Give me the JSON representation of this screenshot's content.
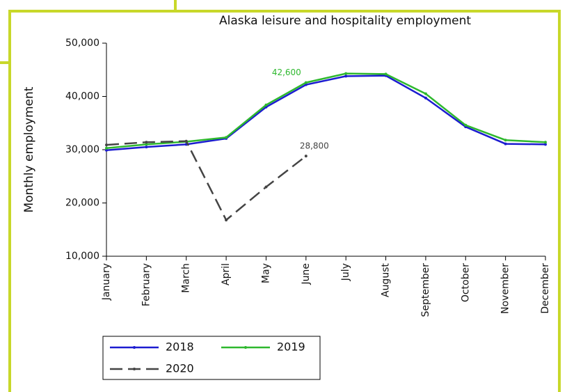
{
  "chart_data": {
    "type": "line",
    "title": "Alaska leisure and hospitality employment",
    "y_label": "Monthly employment",
    "categories": [
      "January",
      "February",
      "March",
      "April",
      "May",
      "June",
      "July",
      "August",
      "September",
      "October",
      "November",
      "December"
    ],
    "series": [
      {
        "name": "2018",
        "color": "#1c1cd0",
        "line_style": "solid",
        "values": [
          29900,
          30500,
          31000,
          32100,
          38000,
          42200,
          43800,
          43900,
          39700,
          34300,
          31100,
          31000
        ]
      },
      {
        "name": "2019",
        "color": "#2eb82e",
        "line_style": "solid",
        "values": [
          30300,
          31000,
          31500,
          32300,
          38400,
          42600,
          44300,
          44200,
          40500,
          34600,
          31800,
          31400
        ],
        "value_labels": [
          null,
          null,
          null,
          null,
          null,
          "42,600",
          null,
          null,
          null,
          null,
          null,
          null
        ]
      },
      {
        "name": "2020",
        "color": "#444444",
        "line_style": "dashed",
        "values": [
          30900,
          31400,
          31600,
          16800,
          23000,
          28800,
          null,
          null,
          null,
          null,
          null,
          null
        ],
        "value_labels": [
          null,
          null,
          null,
          null,
          null,
          "28,800",
          null,
          null,
          null,
          null,
          null,
          null
        ]
      }
    ],
    "ylim": [
      10000,
      50000
    ],
    "yticks": [
      {
        "value": 10000,
        "label": "10,000"
      },
      {
        "value": 20000,
        "label": "20,000"
      },
      {
        "value": 30000,
        "label": "30,000"
      },
      {
        "value": 40000,
        "label": "40,000"
      },
      {
        "value": 50000,
        "label": "50,000"
      }
    ],
    "grid": false
  }
}
